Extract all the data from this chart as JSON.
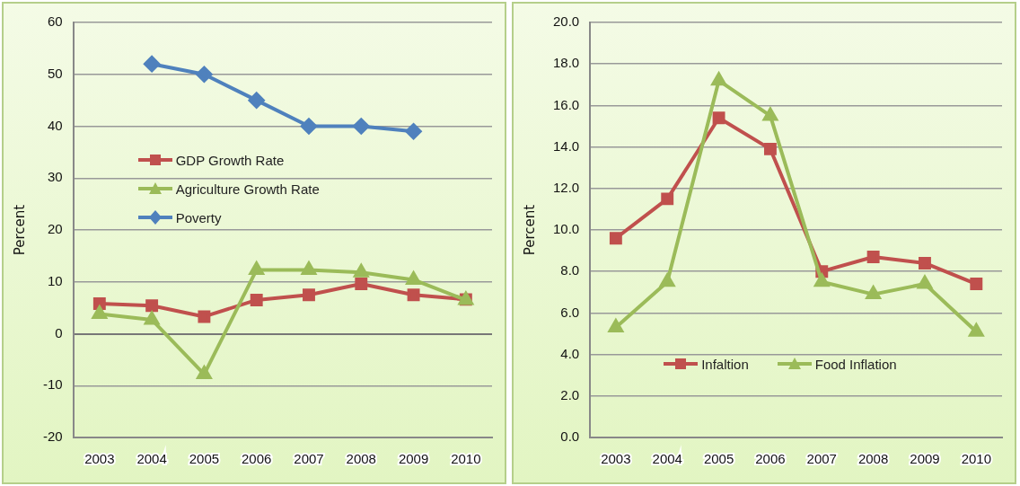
{
  "chart_data": [
    {
      "type": "line",
      "categories": [
        "2003",
        "2004",
        "2005",
        "2006",
        "2007",
        "2008",
        "2009",
        "2010"
      ],
      "ylabel": "Percent",
      "ylim": [
        -20,
        60
      ],
      "yticks": [
        -20,
        -10,
        0,
        10,
        20,
        30,
        40,
        50,
        60
      ],
      "grid": "y",
      "legend": "left",
      "series": [
        {
          "name": "GDP Growth Rate",
          "color": "#c0504d",
          "marker": "square",
          "values": [
            5.8,
            5.4,
            3.3,
            6.5,
            7.5,
            9.6,
            7.5,
            6.6
          ]
        },
        {
          "name": "Agriculture Growth Rate",
          "color": "#9bbb59",
          "marker": "triangle",
          "values": [
            3.8,
            2.7,
            -7.8,
            12.3,
            12.3,
            11.8,
            10.4,
            6.5
          ]
        },
        {
          "name": "Poverty",
          "color": "#4f81bd",
          "marker": "diamond",
          "values": [
            null,
            52,
            50,
            45,
            40,
            40,
            39,
            null
          ]
        }
      ]
    },
    {
      "type": "line",
      "categories": [
        "2003",
        "2004",
        "2005",
        "2006",
        "2007",
        "2008",
        "2009",
        "2010"
      ],
      "ylabel": "Percent",
      "ylim": [
        0,
        20
      ],
      "yticks": [
        {
          "value": 0,
          "label": "0.0"
        },
        {
          "value": 2,
          "label": "2.0"
        },
        {
          "value": 4,
          "label": "4.0"
        },
        {
          "value": 6,
          "label": "6.0"
        },
        {
          "value": 8,
          "label": "8.0"
        },
        {
          "value": 10,
          "label": "10.0"
        },
        {
          "value": 12,
          "label": "12.0"
        },
        {
          "value": 14,
          "label": "14.0"
        },
        {
          "value": 16,
          "label": "16.0"
        },
        {
          "value": 18,
          "label": "18.0"
        },
        {
          "value": 20,
          "label": "20.0"
        }
      ],
      "grid": "y",
      "legend": "bottom",
      "series": [
        {
          "name": "Infaltion",
          "color": "#c0504d",
          "marker": "square",
          "values": [
            9.6,
            11.5,
            15.4,
            13.9,
            8.0,
            8.7,
            8.4,
            7.4
          ]
        },
        {
          "name": "Food Inflation",
          "color": "#9bbb59",
          "marker": "triangle",
          "values": [
            5.3,
            7.5,
            17.2,
            15.5,
            7.5,
            6.9,
            7.4,
            5.1
          ]
        }
      ]
    }
  ]
}
